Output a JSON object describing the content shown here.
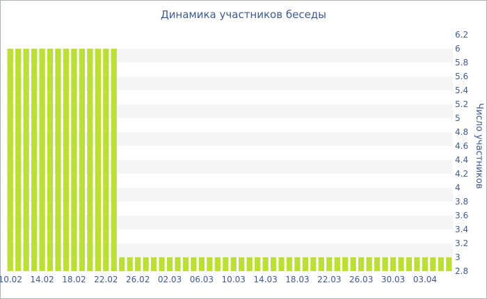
{
  "chart_data": {
    "type": "bar",
    "title": "Динамика участников беседы",
    "xlabel": "",
    "ylabel": "Число участников",
    "ylim": [
      2.8,
      6.2
    ],
    "y_ticks": [
      "2.8",
      "3",
      "3.2",
      "3.4",
      "3.6",
      "3.8",
      "4",
      "4.2",
      "4.4",
      "4.6",
      "4.8",
      "5",
      "5.2",
      "5.4",
      "5.6",
      "5.8",
      "6",
      "6.2"
    ],
    "x_tick_labels": [
      "10.02",
      "14.02",
      "18.02",
      "22.02",
      "26.02",
      "02.03",
      "06.03",
      "10.03",
      "14.03",
      "18.03",
      "22.03",
      "26.03",
      "30.03",
      "03.04"
    ],
    "categories": [
      "10.02",
      "11.02",
      "12.02",
      "13.02",
      "14.02",
      "15.02",
      "16.02",
      "17.02",
      "18.02",
      "19.02",
      "20.02",
      "21.02",
      "22.02",
      "23.02",
      "24.02",
      "25.02",
      "26.02",
      "27.02",
      "28.02",
      "01.03",
      "02.03",
      "03.03",
      "04.03",
      "05.03",
      "06.03",
      "07.03",
      "08.03",
      "09.03",
      "10.03",
      "11.03",
      "12.03",
      "13.03",
      "14.03",
      "15.03",
      "16.03",
      "17.03",
      "18.03",
      "19.03",
      "20.03",
      "21.03",
      "22.03",
      "23.03",
      "24.03",
      "25.03",
      "26.03",
      "27.03",
      "28.03",
      "29.03",
      "30.03",
      "31.03",
      "01.04",
      "02.04",
      "03.04",
      "04.04",
      "05.04",
      "06.04"
    ],
    "values": [
      6,
      6,
      6,
      6,
      6,
      6,
      6,
      6,
      6,
      6,
      6,
      6,
      6,
      6,
      3,
      3,
      3,
      3,
      3,
      3,
      3,
      3,
      3,
      3,
      3,
      3,
      3,
      3,
      3,
      3,
      3,
      3,
      3,
      3,
      3,
      3,
      3,
      3,
      3,
      3,
      3,
      3,
      3,
      3,
      3,
      3,
      3,
      3,
      3,
      3,
      3,
      3,
      3,
      3,
      3,
      3
    ],
    "bar_color": "#bcdf37",
    "band_color": "#f5f5f5",
    "label_color": "#3e5a8f",
    "y_axis_position": "right",
    "grid": "alternating horizontal bands"
  }
}
